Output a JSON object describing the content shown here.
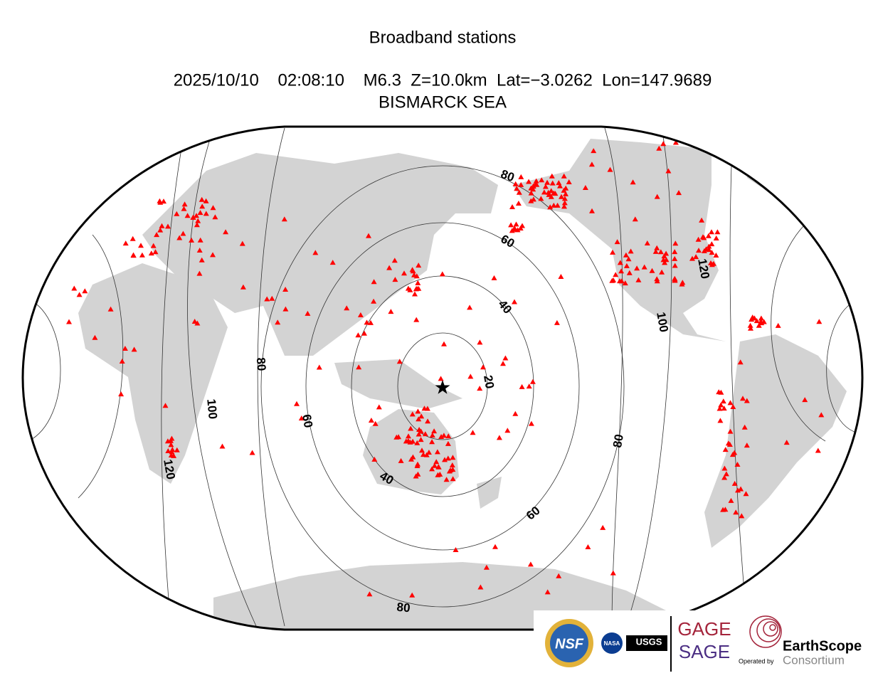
{
  "header": {
    "title": "Broadband stations",
    "event": "2025/10/10    02:08:10    M6.3  Z=10.0km  Lat=−3.0262  Lon=147.9689",
    "region": "BISMARCK SEA"
  },
  "map": {
    "contour_labels": [
      "20",
      "40",
      "60",
      "80",
      "100",
      "120"
    ]
  },
  "logos": {
    "nsf": "NSF",
    "nasa": "NASA",
    "usgs": "USGS",
    "gage": "GAGE",
    "sage": "SAGE",
    "operated": "Operated by",
    "earthscope": "EarthScope",
    "consortium": "Consortium"
  }
}
